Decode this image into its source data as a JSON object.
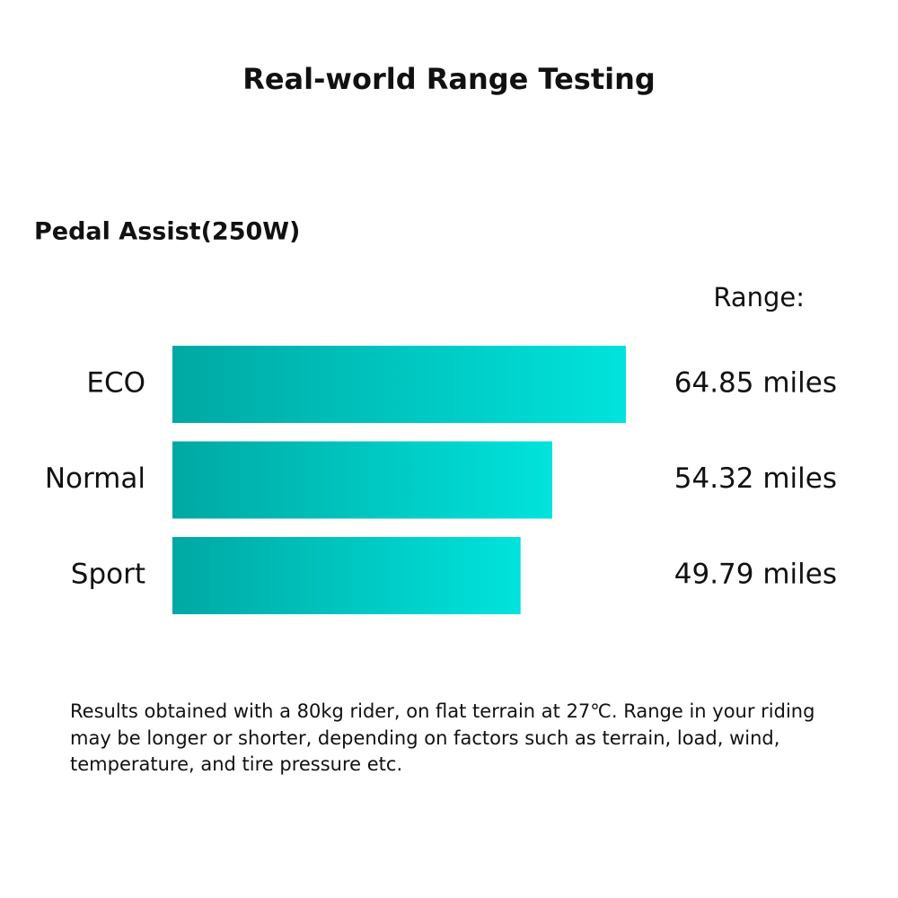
{
  "chart_data": {
    "type": "hbar",
    "title": "Real-world Range Testing",
    "subtitle": "Pedal Assist(250W)",
    "value_header": "Range:",
    "categories": [
      "ECO",
      "Normal",
      "Sport"
    ],
    "values": [
      64.85,
      54.32,
      49.79
    ],
    "value_labels": [
      "64.85 miles",
      "54.32 miles",
      "49.79 miles"
    ],
    "color_start": "#00a8a3",
    "color_end": "#00e3dc",
    "footnote": "Results obtained with a 80kg rider, on flat terrain at 27℃. Range in your riding may be longer or shorter, depending on factors such as terrain, load, wind, temperature, and tire pressure etc."
  }
}
